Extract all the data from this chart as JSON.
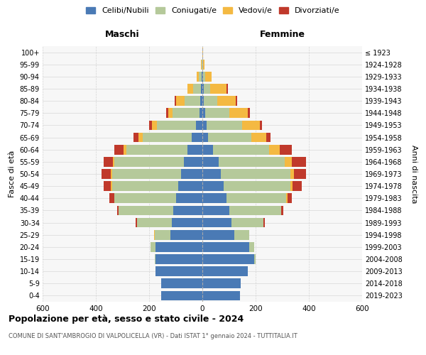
{
  "age_groups": [
    "0-4",
    "5-9",
    "10-14",
    "15-19",
    "20-24",
    "25-29",
    "30-34",
    "35-39",
    "40-44",
    "45-49",
    "50-54",
    "55-59",
    "60-64",
    "65-69",
    "70-74",
    "75-79",
    "80-84",
    "85-89",
    "90-94",
    "95-99",
    "100+"
  ],
  "birth_years": [
    "2019-2023",
    "2014-2018",
    "2009-2013",
    "2004-2008",
    "1999-2003",
    "1994-1998",
    "1989-1993",
    "1984-1988",
    "1979-1983",
    "1974-1978",
    "1969-1973",
    "1964-1968",
    "1959-1963",
    "1954-1958",
    "1949-1953",
    "1944-1948",
    "1939-1943",
    "1934-1938",
    "1929-1933",
    "1924-1928",
    "≤ 1923"
  ],
  "colors": {
    "celibi": "#4a7ab5",
    "coniugati": "#b5c99a",
    "vedovi": "#f4b942",
    "divorziati": "#c0392b"
  },
  "males": {
    "celibi": [
      155,
      155,
      175,
      175,
      175,
      120,
      115,
      110,
      100,
      90,
      80,
      70,
      55,
      40,
      25,
      12,
      8,
      5,
      2,
      1,
      0
    ],
    "coniugati": [
      0,
      0,
      0,
      5,
      20,
      60,
      130,
      205,
      230,
      250,
      260,
      260,
      230,
      185,
      145,
      100,
      60,
      30,
      12,
      3,
      0
    ],
    "vedovi": [
      0,
      0,
      0,
      0,
      0,
      2,
      0,
      0,
      0,
      5,
      5,
      5,
      10,
      15,
      20,
      15,
      30,
      20,
      8,
      2,
      0
    ],
    "divorziati": [
      0,
      0,
      0,
      0,
      0,
      0,
      5,
      5,
      20,
      25,
      35,
      35,
      35,
      20,
      10,
      8,
      5,
      0,
      0,
      0,
      0
    ]
  },
  "females": {
    "celibi": [
      140,
      145,
      170,
      195,
      175,
      120,
      110,
      100,
      90,
      80,
      70,
      60,
      40,
      20,
      15,
      10,
      5,
      5,
      2,
      1,
      0
    ],
    "coniugati": [
      0,
      0,
      0,
      5,
      20,
      55,
      120,
      195,
      225,
      250,
      260,
      250,
      210,
      165,
      135,
      90,
      50,
      25,
      8,
      2,
      0
    ],
    "vedovi": [
      0,
      0,
      0,
      0,
      0,
      0,
      0,
      0,
      5,
      8,
      15,
      25,
      40,
      55,
      65,
      70,
      70,
      60,
      25,
      5,
      2
    ],
    "divorziati": [
      0,
      0,
      0,
      0,
      0,
      0,
      5,
      10,
      15,
      35,
      45,
      55,
      45,
      15,
      10,
      8,
      5,
      5,
      0,
      0,
      0
    ]
  },
  "xlim": 600,
  "title": "Popolazione per età, sesso e stato civile - 2024",
  "subtitle": "COMUNE DI SANT'AMBROGIO DI VALPOLICELLA (VR) - Dati ISTAT 1° gennaio 2024 - TUTTITALIA.IT",
  "xlabel_left": "Maschi",
  "xlabel_right": "Femmine",
  "ylabel_left": "Fasce di età",
  "ylabel_right": "Anni di nascita",
  "legend_labels": [
    "Celibi/Nubili",
    "Coniugati/e",
    "Vedovi/e",
    "Divorziati/e"
  ],
  "bg_color": "#ffffff",
  "grid_color": "#cccccc"
}
